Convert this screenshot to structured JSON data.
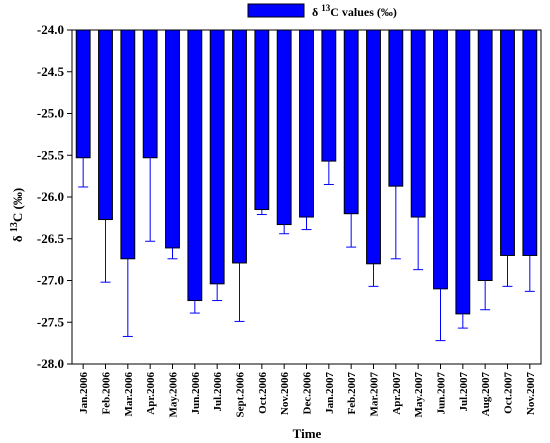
{
  "chart_data": {
    "type": "bar",
    "xlabel": "Time",
    "ylabel": "δ 13C (‰)",
    "ylabel_prefix": "δ ",
    "ylabel_sup": "13",
    "ylabel_suffix": "C (‰)",
    "legend": {
      "label_prefix": "δ ",
      "label_sup": "13",
      "label_suffix": "C values (‰)",
      "placement": "top-center"
    },
    "ylim": [
      -28.0,
      -24.0
    ],
    "yticks": [
      "-24.0",
      "-24.5",
      "-25.0",
      "-25.5",
      "-26.0",
      "-26.5",
      "-27.0",
      "-27.5",
      "-28.0"
    ],
    "ytick_values": [
      -24.0,
      -24.5,
      -25.0,
      -25.5,
      -26.0,
      -26.5,
      -27.0,
      -27.5,
      -28.0
    ],
    "categories": [
      "Jan.2006",
      "Feb.2006",
      "Mar.2006",
      "Apr.2006",
      "May.2006",
      "Jun.2006",
      "Jul.2006",
      "Sept.2006",
      "Oct.2006",
      "Nov.2006",
      "Dec.2006",
      "Jan.2007",
      "Feb.2007",
      "Mar.2007",
      "Apr.2007",
      "May.2007",
      "Jun.2007",
      "Jul.2007",
      "Aug.2007",
      "Oct.2007",
      "Nov.2007"
    ],
    "values": [
      -25.53,
      -26.27,
      -26.74,
      -25.53,
      -26.61,
      -27.24,
      -27.04,
      -26.79,
      -26.15,
      -26.33,
      -26.24,
      -25.57,
      -26.2,
      -26.8,
      -25.87,
      -26.24,
      -27.1,
      -27.4,
      -27.0,
      -26.7,
      -26.7
    ],
    "error": [
      0.35,
      0.75,
      0.93,
      1.0,
      0.13,
      0.15,
      0.2,
      0.7,
      0.06,
      0.11,
      0.15,
      0.28,
      0.4,
      0.27,
      0.87,
      0.63,
      0.62,
      0.17,
      0.35,
      0.37,
      0.43
    ],
    "error_direction": "down",
    "bar_color": "#0000ff",
    "edge_color": "#000000"
  }
}
